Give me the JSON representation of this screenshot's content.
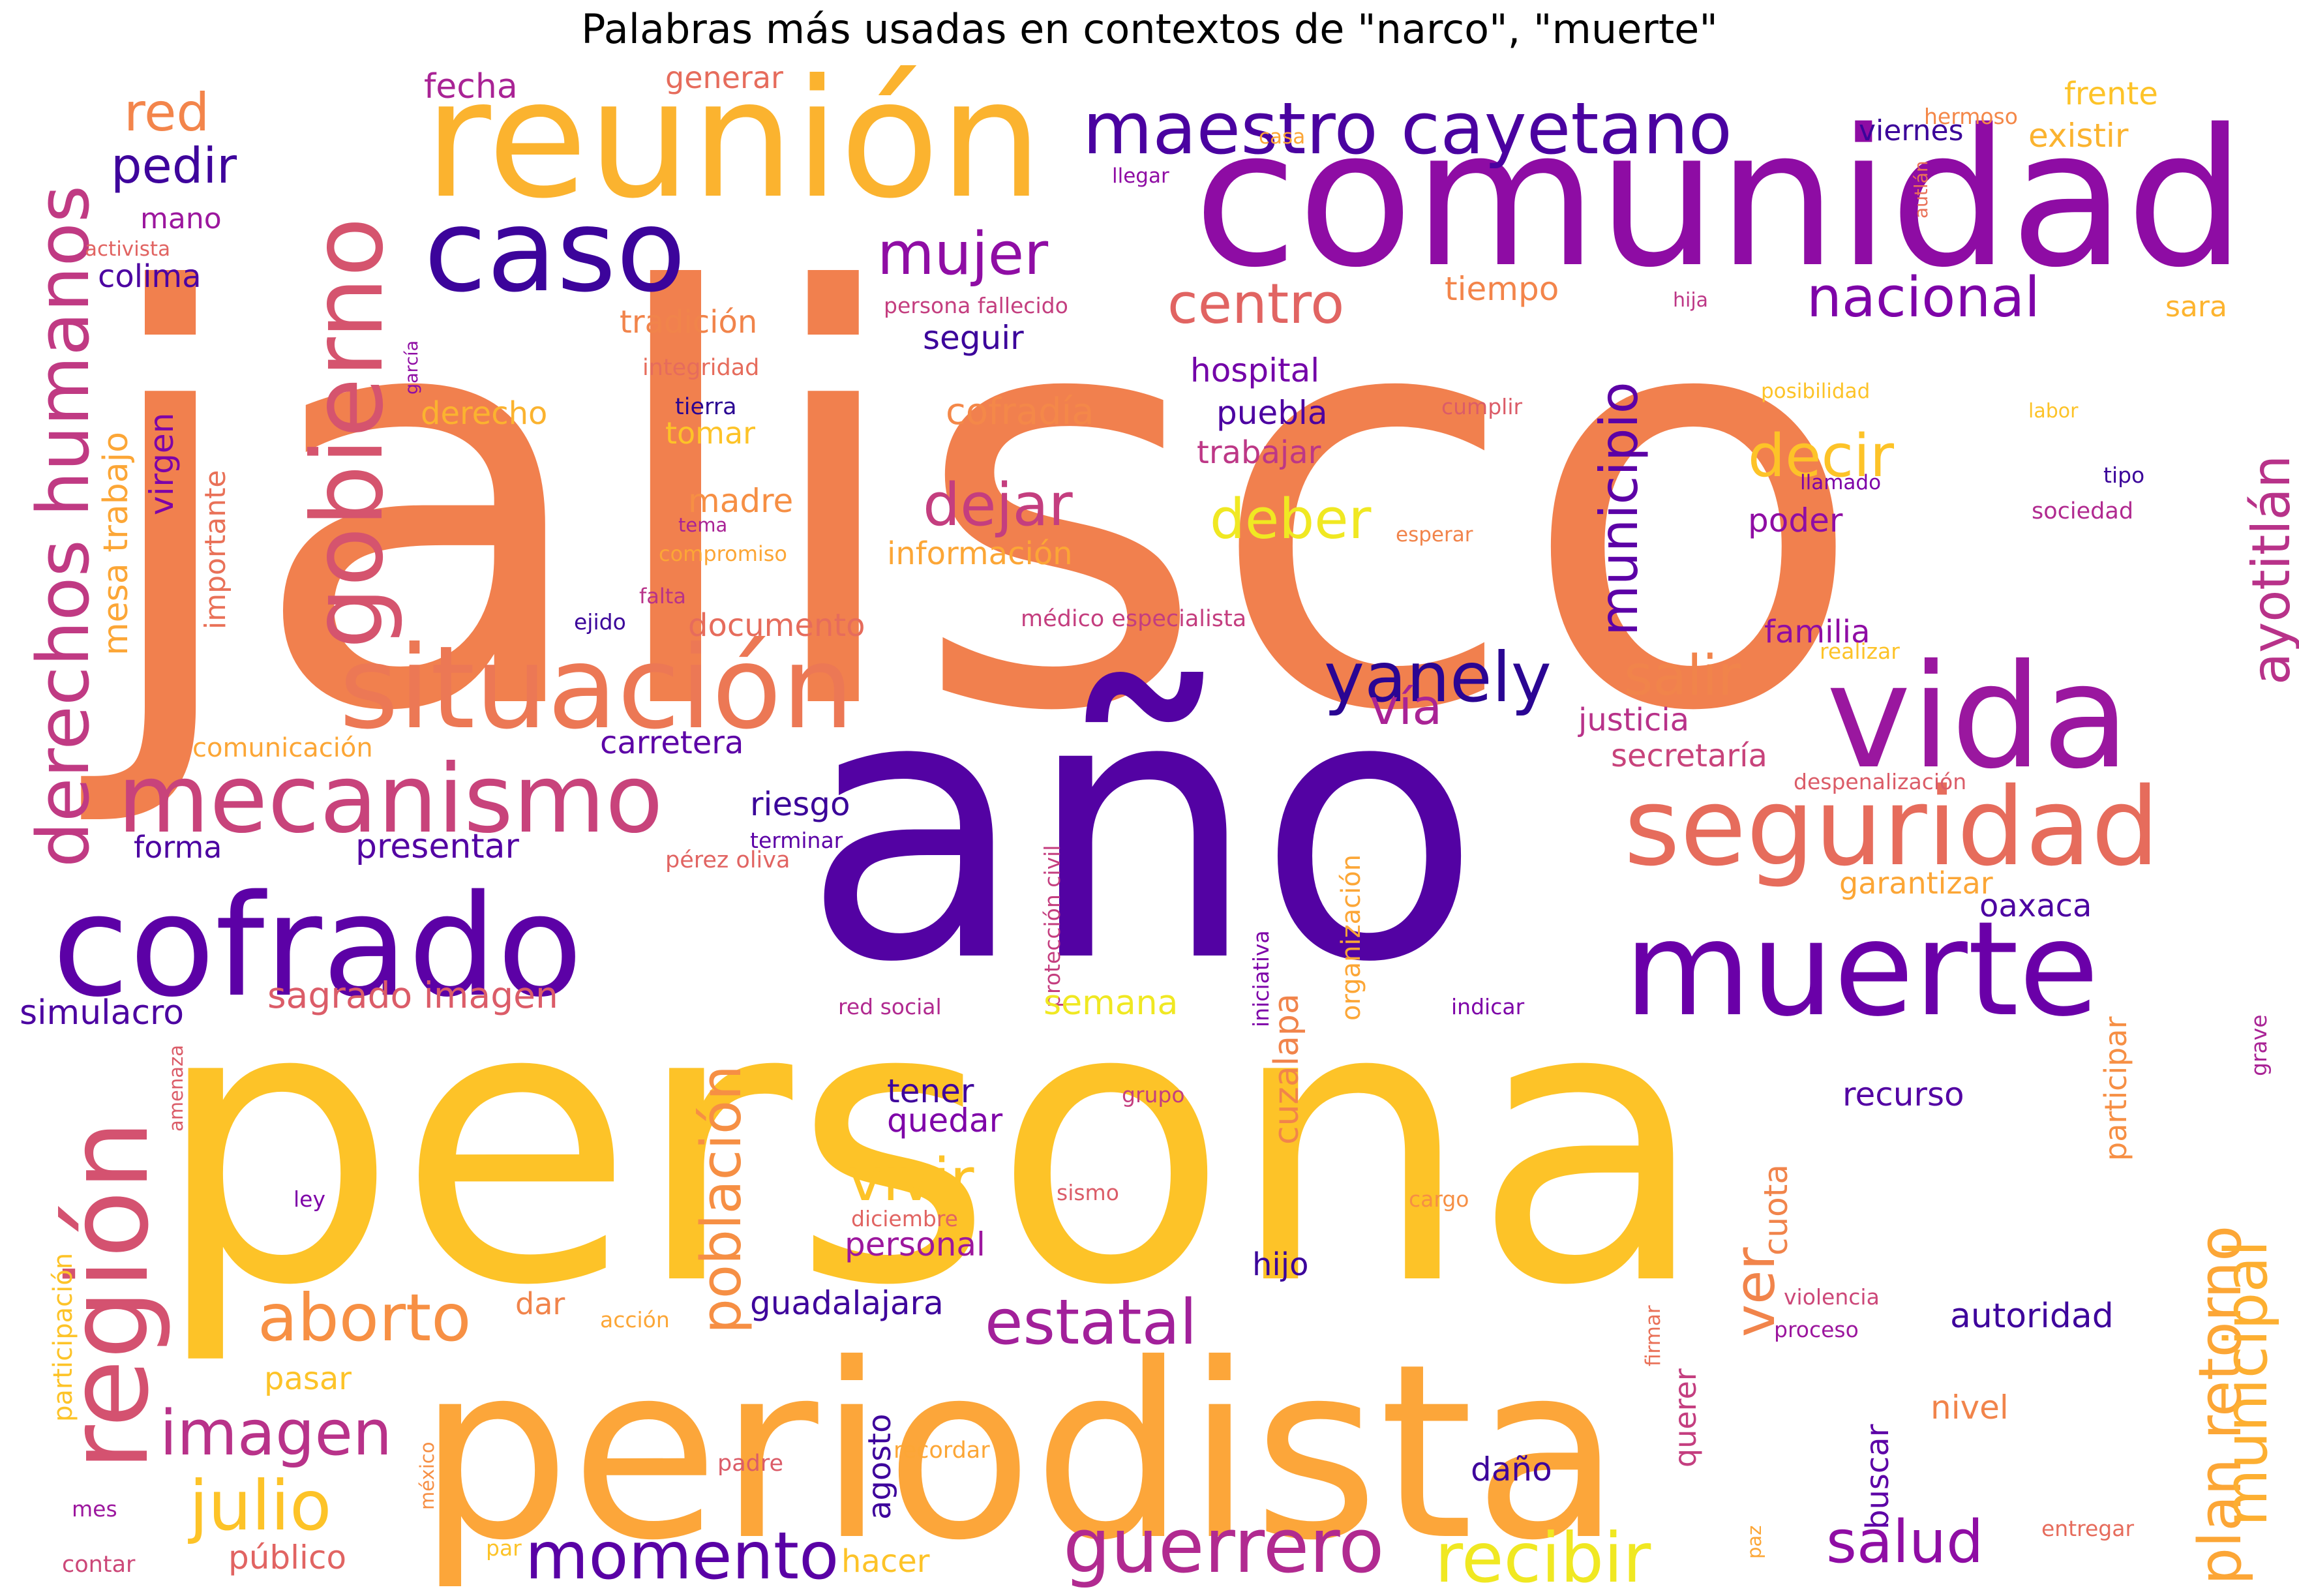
{
  "title": "Palabras más usadas en contextos de \"narco\", \"muerte\"",
  "colors": {
    "dark_indigo": "#2a0593",
    "indigo": "#4b03a1",
    "purple": "#6a00a8",
    "violet": "#8f0da4",
    "magenta": "#b12a90",
    "rose": "#cc4778",
    "salmon": "#e16462",
    "orange": "#f1834b",
    "light_orange": "#fca636",
    "gold": "#fdc328",
    "yellow": "#f0e822"
  },
  "words": [
    {
      "text": "jalisco",
      "color": "#f1804e"
    },
    {
      "text": "año",
      "color": "#5302a3"
    },
    {
      "text": "persona",
      "color": "#fdc328"
    },
    {
      "text": "periodista",
      "color": "#fca63a"
    },
    {
      "text": "comunidad",
      "color": "#8e0ca4"
    },
    {
      "text": "reunión",
      "color": "#fbb32f"
    },
    {
      "text": "caso",
      "color": "#3c049b"
    },
    {
      "text": "situación",
      "color": "#ec7855"
    },
    {
      "text": "vida",
      "color": "#9a179f"
    },
    {
      "text": "cofrado",
      "color": "#5c01a6"
    },
    {
      "text": "muerte",
      "color": "#6a00a8"
    },
    {
      "text": "seguridad",
      "color": "#e66c5c"
    },
    {
      "text": "región",
      "color": "#d45270"
    },
    {
      "text": "gobierno",
      "color": "#d5546e"
    },
    {
      "text": "mecanismo",
      "color": "#c8437b"
    },
    {
      "text": "maestro cayetano",
      "color": "#4a02a0"
    },
    {
      "text": "derechos humanos",
      "color": "#c03a83"
    },
    {
      "text": "yanely",
      "color": "#2a0593"
    },
    {
      "text": "guerrero",
      "color": "#b12a90"
    },
    {
      "text": "estatal",
      "color": "#a2209a"
    },
    {
      "text": "momento",
      "color": "#5901a5"
    },
    {
      "text": "recibir",
      "color": "#f0e822"
    },
    {
      "text": "julio",
      "color": "#fdc328"
    },
    {
      "text": "aborto",
      "color": "#f79044"
    },
    {
      "text": "imagen",
      "color": "#b83289"
    },
    {
      "text": "población",
      "color": "#f68f44"
    },
    {
      "text": "plan retorno",
      "color": "#fca636"
    },
    {
      "text": "municipal",
      "color": "#fdaf31"
    },
    {
      "text": "ayotitlán",
      "color": "#b83289"
    },
    {
      "text": "municipio",
      "color": "#5c01a6"
    },
    {
      "text": "salud",
      "color": "#8f0da4"
    },
    {
      "text": "decir",
      "color": "#fdc328"
    },
    {
      "text": "dejar",
      "color": "#c43e7f"
    },
    {
      "text": "mujer",
      "color": "#8f0da4"
    },
    {
      "text": "nacional",
      "color": "#7e03a8"
    },
    {
      "text": "centro",
      "color": "#e16462"
    },
    {
      "text": "deber",
      "color": "#f0e822"
    },
    {
      "text": "vivir",
      "color": "#fdc328"
    },
    {
      "text": "ver",
      "color": "#f1844b"
    },
    {
      "text": "salir",
      "color": "#f1844b"
    },
    {
      "text": "vía",
      "color": "#a92395"
    },
    {
      "text": "red",
      "color": "#f3854b"
    },
    {
      "text": "pedir",
      "color": "#3e049c"
    },
    {
      "text": "mesa trabajo",
      "color": "#fca636"
    },
    {
      "text": "virgen",
      "color": "#7e03a8"
    },
    {
      "text": "importante",
      "color": "#e97158"
    },
    {
      "text": "sagrado imagen",
      "color": "#db5c68"
    },
    {
      "text": "presentar",
      "color": "#5302a3"
    },
    {
      "text": "simulacro",
      "color": "#4c02a1"
    },
    {
      "text": "forma",
      "color": "#4c02a1"
    },
    {
      "text": "riesgo",
      "color": "#3b049a"
    },
    {
      "text": "carretera",
      "color": "#5c01a6"
    },
    {
      "text": "comunicación",
      "color": "#fca636"
    },
    {
      "text": "documento",
      "color": "#e66c5c"
    },
    {
      "text": "información",
      "color": "#fca636"
    },
    {
      "text": "cofradía",
      "color": "#f48849"
    },
    {
      "text": "tradición",
      "color": "#f1844b"
    },
    {
      "text": "seguir",
      "color": "#3c049b"
    },
    {
      "text": "hospital",
      "color": "#7301a8"
    },
    {
      "text": "puebla",
      "color": "#4c02a1"
    },
    {
      "text": "trabajar",
      "color": "#bd3786"
    },
    {
      "text": "madre",
      "color": "#f68f44"
    },
    {
      "text": "derecho",
      "color": "#fbb32f"
    },
    {
      "text": "tomar",
      "color": "#fdc328"
    },
    {
      "text": "tiempo",
      "color": "#f3854b"
    },
    {
      "text": "fecha",
      "color": "#a92395"
    },
    {
      "text": "generar",
      "color": "#e66c5c"
    },
    {
      "text": "viernes",
      "color": "#3b049a"
    },
    {
      "text": "frente",
      "color": "#fdc328"
    },
    {
      "text": "existir",
      "color": "#fbb32f"
    },
    {
      "text": "hermoso",
      "color": "#f48849"
    },
    {
      "text": "casa",
      "color": "#fca636"
    },
    {
      "text": "llegar",
      "color": "#8f0da4"
    },
    {
      "text": "mano",
      "color": "#9c179e"
    },
    {
      "text": "activista",
      "color": "#e16462"
    },
    {
      "text": "colima",
      "color": "#4c02a1"
    },
    {
      "text": "persona fallecido",
      "color": "#c43e7f"
    },
    {
      "text": "autlán",
      "color": "#e97158"
    },
    {
      "text": "hija",
      "color": "#bd3786"
    },
    {
      "text": "sara",
      "color": "#fdb42f"
    },
    {
      "text": "garcía",
      "color": "#8f0da4"
    },
    {
      "text": "integridad",
      "color": "#e66c5c"
    },
    {
      "text": "tierra",
      "color": "#2a0593"
    },
    {
      "text": "cumplir",
      "color": "#db5c68"
    },
    {
      "text": "posibilidad",
      "color": "#fdc328"
    },
    {
      "text": "labor",
      "color": "#fdc328"
    },
    {
      "text": "tipo",
      "color": "#3b049a"
    },
    {
      "text": "llamado",
      "color": "#7e03a8"
    },
    {
      "text": "sociedad",
      "color": "#b12a90"
    },
    {
      "text": "poder",
      "color": "#8f0da4"
    },
    {
      "text": "esperar",
      "color": "#f1844b"
    },
    {
      "text": "tema",
      "color": "#a92395"
    },
    {
      "text": "compromiso",
      "color": "#fca636"
    },
    {
      "text": "falta",
      "color": "#b83289"
    },
    {
      "text": "ejido",
      "color": "#3b049a"
    },
    {
      "text": "médico especialista",
      "color": "#c43e7f"
    },
    {
      "text": "familia",
      "color": "#8f0da4"
    },
    {
      "text": "realizar",
      "color": "#fdc328"
    },
    {
      "text": "justicia",
      "color": "#b83289"
    },
    {
      "text": "secretaría",
      "color": "#c8437b"
    },
    {
      "text": "despenalización",
      "color": "#db5c68"
    },
    {
      "text": "garantizar",
      "color": "#fca636"
    },
    {
      "text": "oaxaca",
      "color": "#4c02a1"
    },
    {
      "text": "terminar",
      "color": "#5c01a6"
    },
    {
      "text": "pérez oliva",
      "color": "#e16462"
    },
    {
      "text": "protección civil",
      "color": "#c43e7f"
    },
    {
      "text": "iniciativa",
      "color": "#7e03a8"
    },
    {
      "text": "organización",
      "color": "#fca636"
    },
    {
      "text": "cuzalapa",
      "color": "#f1844b"
    },
    {
      "text": "red social",
      "color": "#b12a90"
    },
    {
      "text": "indicar",
      "color": "#7e03a8"
    },
    {
      "text": "semana",
      "color": "#f0e822"
    },
    {
      "text": "recurso",
      "color": "#5302a3"
    },
    {
      "text": "participar",
      "color": "#f68f44"
    },
    {
      "text": "grave",
      "color": "#a92395"
    },
    {
      "text": "tener",
      "color": "#3e049c"
    },
    {
      "text": "quedar",
      "color": "#7e03a8"
    },
    {
      "text": "grupo",
      "color": "#c43e7f"
    },
    {
      "text": "amenaza",
      "color": "#db5c68"
    },
    {
      "text": "ley",
      "color": "#7e03a8"
    },
    {
      "text": "sismo",
      "color": "#db5c68"
    },
    {
      "text": "cargo",
      "color": "#f68f44"
    },
    {
      "text": "diciembre",
      "color": "#e16462"
    },
    {
      "text": "personal",
      "color": "#9c179e"
    },
    {
      "text": "cuota",
      "color": "#f1844b"
    },
    {
      "text": "hijo",
      "color": "#3b049a"
    },
    {
      "text": "participación",
      "color": "#fdc328"
    },
    {
      "text": "dar",
      "color": "#f1844b"
    },
    {
      "text": "acción",
      "color": "#fca636"
    },
    {
      "text": "guadalajara",
      "color": "#3e049c"
    },
    {
      "text": "violencia",
      "color": "#cc4778"
    },
    {
      "text": "proceso",
      "color": "#9c179e"
    },
    {
      "text": "autoridad",
      "color": "#3e049c"
    },
    {
      "text": "firmar",
      "color": "#e97158"
    },
    {
      "text": "querer",
      "color": "#c43e7f"
    },
    {
      "text": "pasar",
      "color": "#fdc328"
    },
    {
      "text": "nivel",
      "color": "#f1844b"
    },
    {
      "text": "buscar",
      "color": "#5c01a6"
    },
    {
      "text": "agosto",
      "color": "#3e049c"
    },
    {
      "text": "daño",
      "color": "#3e049c"
    },
    {
      "text": "méxico",
      "color": "#f68f44"
    },
    {
      "text": "recordar",
      "color": "#fca636"
    },
    {
      "text": "padre",
      "color": "#db5c68"
    },
    {
      "text": "mes",
      "color": "#9c179e"
    },
    {
      "text": "contar",
      "color": "#cc4778"
    },
    {
      "text": "público",
      "color": "#e16462"
    },
    {
      "text": "par",
      "color": "#fdc328"
    },
    {
      "text": "hacer",
      "color": "#fdc328"
    },
    {
      "text": "paz",
      "color": "#fca636"
    },
    {
      "text": "entregar",
      "color": "#e66c5c"
    }
  ]
}
